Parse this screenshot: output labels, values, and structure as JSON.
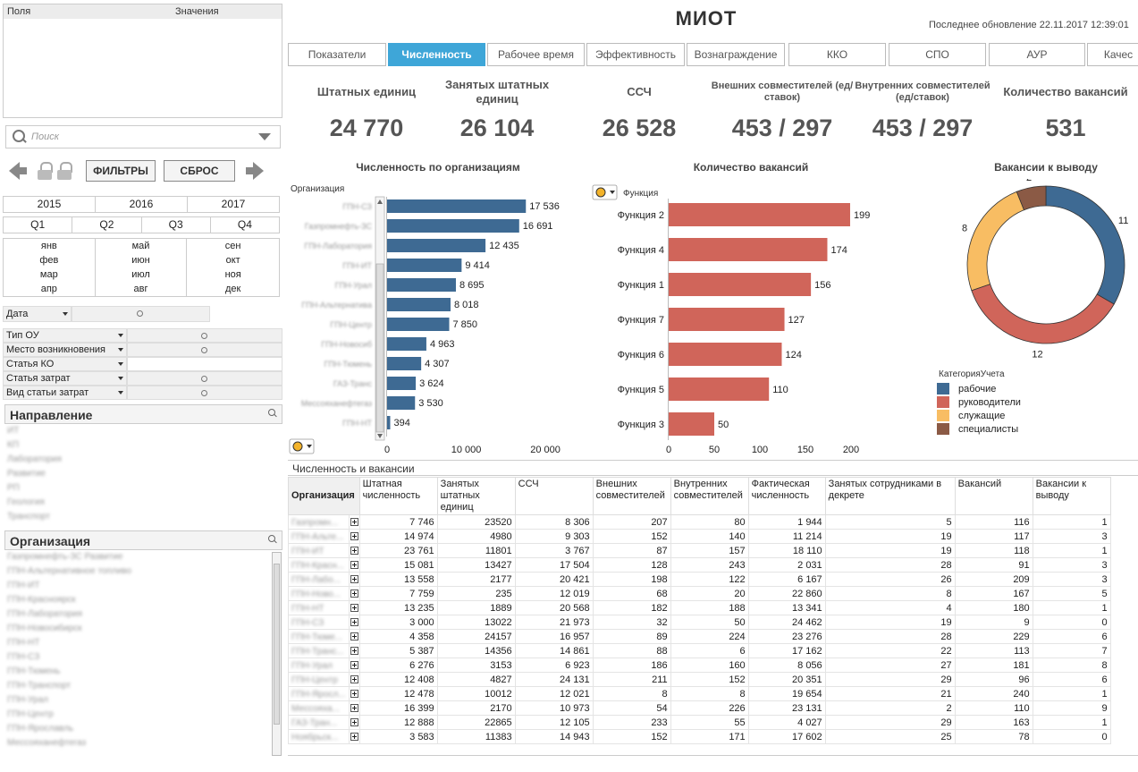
{
  "left": {
    "fields_header": "Поля",
    "values_header": "Значения",
    "search_placeholder": "Поиск",
    "filters_button": "ФИЛЬТРЫ",
    "reset_button": "СБРОС",
    "years": [
      "2015",
      "2016",
      "2017"
    ],
    "quarters": [
      "Q1",
      "Q2",
      "Q3",
      "Q4"
    ],
    "months": [
      "янв",
      "фев",
      "мар",
      "апр",
      "май",
      "июн",
      "июл",
      "авг",
      "сен",
      "окт",
      "ноя",
      "дек"
    ],
    "date_label": "Дата",
    "filter_rows": [
      "Тип ОУ",
      "Место возникновения",
      "Статья КО",
      "Статья затрат",
      "Вид статьи затрат"
    ],
    "direction_title": "Направление",
    "direction_items": [
      "ИТ",
      "КП",
      "Лаборатория",
      "Развитие",
      "РП",
      "Геология",
      "Транспорт"
    ],
    "org_title": "Организация",
    "org_items": [
      "Газпромнефть-ЗС Развитие",
      "ГПН-Альтернативное топливо",
      "ГПН-ИТ",
      "ГПН-Красноярск",
      "ГПН-Лаборатория",
      "ГПН-Новосибирск",
      "ГПН-НТ",
      "ГПН-СЗ",
      "ГПН-Тюмень",
      "ГПН-Транспорт",
      "ГПН-Урал",
      "ГПН-Центр",
      "ГПН-Ярославль",
      "Мессояханефтегаз"
    ]
  },
  "header": {
    "title": "МИОТ",
    "updated": "Последнее обновление 22.11.2017 12:39:01"
  },
  "tabs": [
    {
      "label": "Показатели",
      "active": false
    },
    {
      "label": "Численность",
      "active": true
    },
    {
      "label": "Рабочее время",
      "active": false
    },
    {
      "label": "Эффективность",
      "active": false
    },
    {
      "label": "Вознаграждение",
      "active": false
    },
    {
      "label": "ККО",
      "active": false
    },
    {
      "label": "СПО",
      "active": false
    },
    {
      "label": "АУР",
      "active": false
    },
    {
      "label": "Качес",
      "active": false
    }
  ],
  "kpis": [
    {
      "label": "Штатных единиц",
      "value": "24 770"
    },
    {
      "label": "Занятых штатных единиц",
      "value": "26 104"
    },
    {
      "label": "ССЧ",
      "value": "26 528"
    },
    {
      "label": "Внешних совместителей (ед/ставок)",
      "value": "453 / 297"
    },
    {
      "label": "Внутренних совместителей (ед/ставок)",
      "value": "453 / 297"
    },
    {
      "label": "Количество вакансий",
      "value": "531"
    }
  ],
  "chart_data": [
    {
      "type": "bar",
      "orientation": "horizontal",
      "title": "Численность по организациям",
      "ylabel": "Организация",
      "categories": [
        "ГПН-СЗ",
        "Газпромнефть-ЗС",
        "ГПН-Лаборатория",
        "ГПН-ИТ",
        "ГПН-Урал",
        "ГПН-Альтернатива",
        "ГПН-Центр",
        "ГПН-Новосиб",
        "ГПН-Тюмень",
        "ГАЗ-Транс",
        "Мессояханефтегаз",
        "ГПН-НТ"
      ],
      "values": [
        17536,
        16691,
        12435,
        9414,
        8695,
        8018,
        7850,
        4963,
        4307,
        3624,
        3530,
        394
      ],
      "value_labels": [
        "17 536",
        "16 691",
        "12 435",
        "9 414",
        "8 695",
        "8 018",
        "7 850",
        "4 963",
        "4 307",
        "3 624",
        "3 530",
        "394"
      ],
      "xticks": [
        "0",
        "10 000",
        "20 000"
      ],
      "xlim": [
        0,
        20000
      ],
      "color": "#3e6a93"
    },
    {
      "type": "bar",
      "orientation": "horizontal",
      "title": "Количество вакансий",
      "ylabel": "Функция",
      "categories": [
        "Функция 2",
        "Функция 4",
        "Функция 1",
        "Функция 7",
        "Функция 6",
        "Функция 5",
        "Функция 3"
      ],
      "values": [
        199,
        174,
        156,
        127,
        124,
        110,
        50
      ],
      "xticks": [
        "0",
        "50",
        "100",
        "150",
        "200"
      ],
      "xlim": [
        0,
        200
      ],
      "color": "#d0655a"
    },
    {
      "type": "pie",
      "donut": true,
      "title": "Вакансии к выводу",
      "legend_title": "КатегорияУчета",
      "legend_position": "bottom",
      "categories": [
        "рабочие",
        "руководители",
        "служащие",
        "специалисты"
      ],
      "values": [
        11,
        12,
        8,
        2
      ],
      "colors": [
        "#3e6a93",
        "#d0655a",
        "#f8bd63",
        "#8b5a45"
      ]
    }
  ],
  "table": {
    "title": "Численность и вакансии",
    "org_header": "Организация",
    "columns": [
      "Штатная численность",
      "Занятых штатных единиц",
      "ССЧ",
      "Внешних совместителей",
      "Внутренних совместителей",
      "Фактическая численность",
      "Занятых сотрудниками в декрете",
      "Вакансий",
      "Вакансии к выводу"
    ],
    "rows": [
      {
        "org": "Газпромн...",
        "v": [
          "7 746",
          "23520",
          "8 306",
          "207",
          "80",
          "1 944",
          "5",
          "116",
          "1"
        ]
      },
      {
        "org": "ГПН-Альте...",
        "v": [
          "14 974",
          "4980",
          "9 303",
          "152",
          "140",
          "11 214",
          "19",
          "117",
          "3"
        ]
      },
      {
        "org": "ГПН-ИТ",
        "v": [
          "23 761",
          "11801",
          "3 767",
          "87",
          "157",
          "18 110",
          "19",
          "118",
          "1"
        ]
      },
      {
        "org": "ГПН-Красн...",
        "v": [
          "15 081",
          "13427",
          "17 504",
          "128",
          "243",
          "2 031",
          "28",
          "91",
          "3"
        ]
      },
      {
        "org": "ГПН-Лабо...",
        "v": [
          "13 558",
          "2177",
          "20 421",
          "198",
          "122",
          "6 167",
          "26",
          "209",
          "3"
        ]
      },
      {
        "org": "ГПН-Ново...",
        "v": [
          "7 759",
          "235",
          "12 019",
          "68",
          "20",
          "22 860",
          "8",
          "167",
          "5"
        ]
      },
      {
        "org": "ГПН-НТ",
        "v": [
          "13 235",
          "1889",
          "20 568",
          "182",
          "188",
          "13 341",
          "4",
          "180",
          "1"
        ]
      },
      {
        "org": "ГПН-СЗ",
        "v": [
          "3 000",
          "13022",
          "21 973",
          "32",
          "50",
          "24 462",
          "19",
          "9",
          "0"
        ]
      },
      {
        "org": "ГПН-Тюме...",
        "v": [
          "4 358",
          "24157",
          "16 957",
          "89",
          "224",
          "23 276",
          "28",
          "229",
          "6"
        ]
      },
      {
        "org": "ГПН-Транс...",
        "v": [
          "5 387",
          "14356",
          "14 861",
          "88",
          "6",
          "17 162",
          "22",
          "113",
          "7"
        ]
      },
      {
        "org": "ГПН-Урал",
        "v": [
          "6 276",
          "3153",
          "6 923",
          "186",
          "160",
          "8 056",
          "27",
          "181",
          "8"
        ]
      },
      {
        "org": "ГПН-Центр",
        "v": [
          "12 408",
          "4827",
          "24 131",
          "211",
          "152",
          "20 351",
          "29",
          "96",
          "6"
        ]
      },
      {
        "org": "ГПН-Яросл...",
        "v": [
          "12 478",
          "10012",
          "12 021",
          "8",
          "8",
          "19 654",
          "21",
          "240",
          "1"
        ]
      },
      {
        "org": "Мессояха...",
        "v": [
          "16 399",
          "2170",
          "10 973",
          "54",
          "226",
          "23 131",
          "2",
          "110",
          "9"
        ]
      },
      {
        "org": "ГАЗ-Тран...",
        "v": [
          "12 888",
          "22865",
          "12 105",
          "233",
          "55",
          "4 027",
          "29",
          "163",
          "1"
        ]
      },
      {
        "org": "Ноябрьск...",
        "v": [
          "3 583",
          "11383",
          "14 943",
          "152",
          "171",
          "17 602",
          "25",
          "78",
          "0"
        ]
      }
    ]
  }
}
